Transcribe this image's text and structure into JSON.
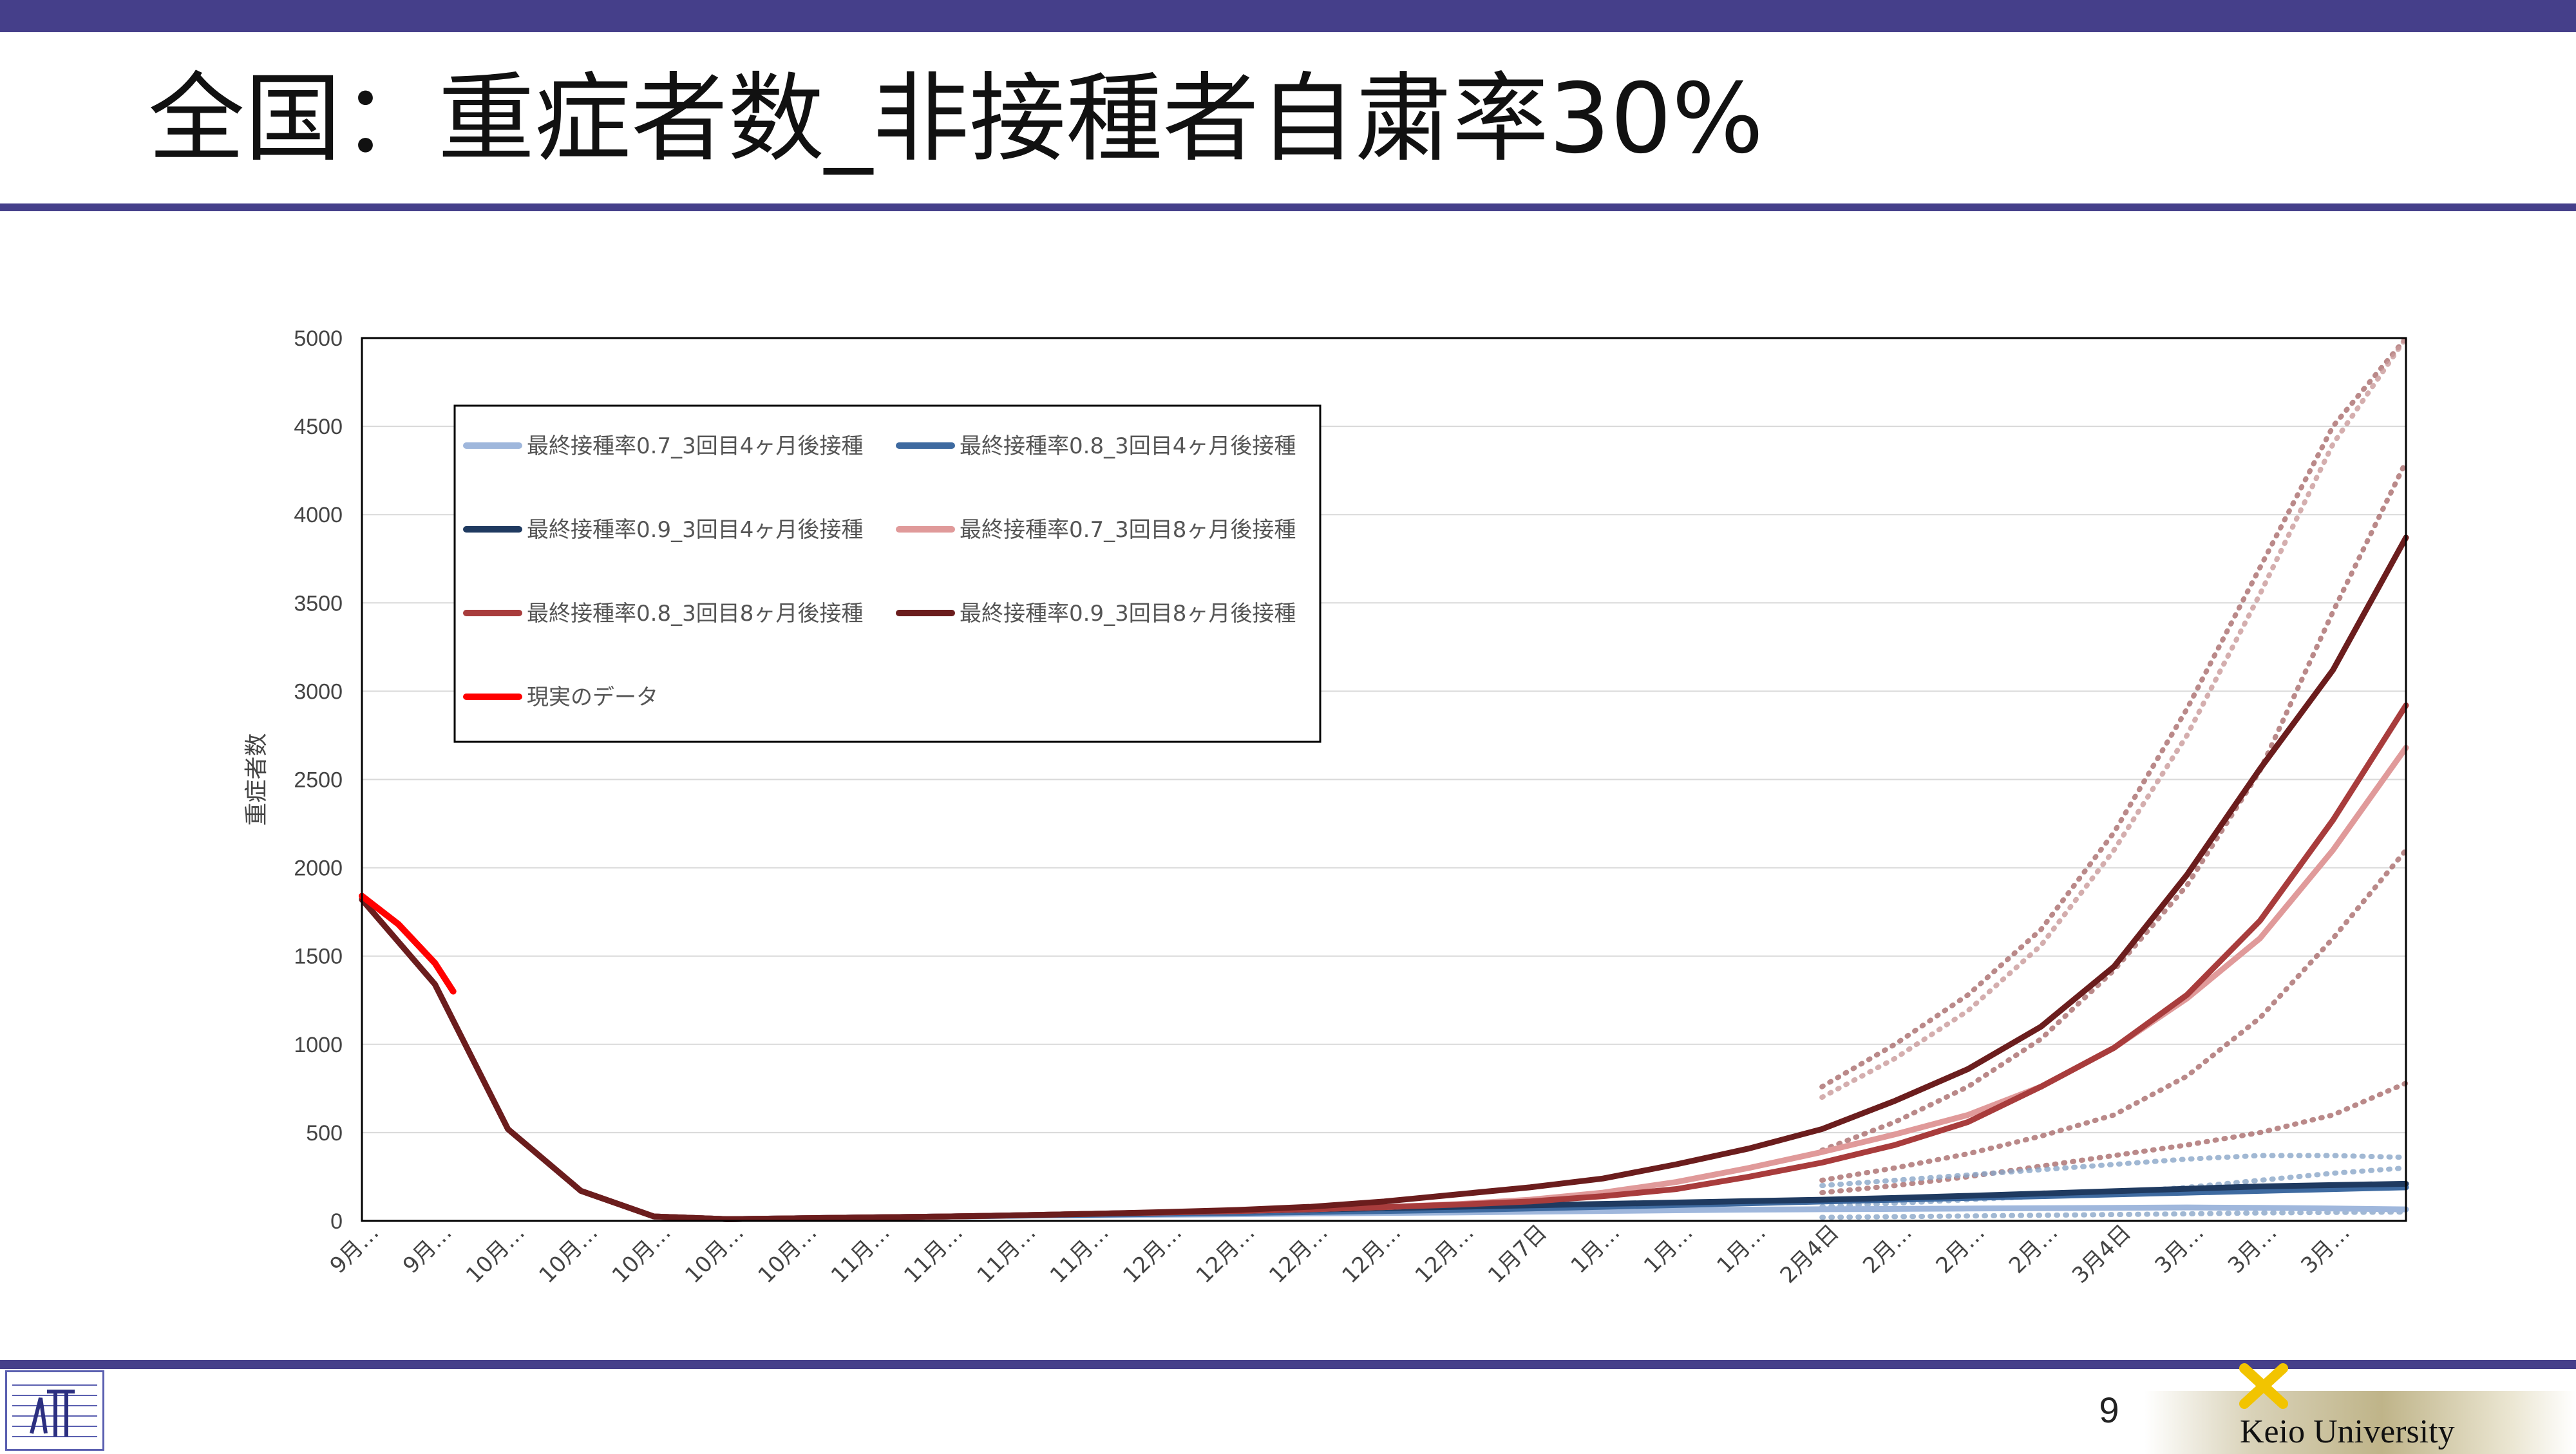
{
  "slide": {
    "title": "全国：重症者数_非接種者自粛率30%",
    "page_number": "9",
    "university_logo_text": "Keio University",
    "accent_color": "#453f8a"
  },
  "chart_data": {
    "type": "line",
    "title": "",
    "xlabel": "",
    "ylabel": "重症者数",
    "ylim": [
      0,
      5000
    ],
    "yticks": [
      0,
      500,
      1000,
      1500,
      2000,
      2500,
      3000,
      3500,
      4000,
      4500,
      5000
    ],
    "grid": true,
    "legend_position": "top-left inside",
    "x_tick_labels": [
      "9月…",
      "9月…",
      "10月…",
      "10月…",
      "10月…",
      "10月…",
      "10月…",
      "11月…",
      "11月…",
      "11月…",
      "11月…",
      "12月…",
      "12月…",
      "12月…",
      "12月…",
      "12月…",
      "1月7日",
      "1月…",
      "1月…",
      "1月…",
      "2月4日",
      "2月…",
      "2月…",
      "2月…",
      "3月4日",
      "3月…",
      "3月…",
      "3月…"
    ],
    "series": [
      {
        "name": "最終接種率0.7_3回目4ヶ月後接種",
        "color": "#9fb7dc",
        "style": "solid",
        "x": [
          0,
          1,
          2,
          3,
          4,
          5,
          6,
          7,
          8,
          9,
          10,
          11,
          12,
          13,
          14,
          15,
          16,
          17,
          18,
          19,
          20,
          21,
          22,
          23,
          24,
          25,
          26,
          27,
          28
        ],
        "values": [
          1820,
          1340,
          520,
          170,
          25,
          10,
          15,
          20,
          25,
          30,
          32,
          35,
          38,
          42,
          45,
          48,
          52,
          56,
          60,
          64,
          66,
          68,
          70,
          72,
          74,
          76,
          74,
          70,
          65
        ]
      },
      {
        "name": "最終接種率0.8_3回目4ヶ月後接種",
        "color": "#3e6aa0",
        "style": "solid",
        "x": [
          0,
          1,
          2,
          3,
          4,
          5,
          6,
          7,
          8,
          9,
          10,
          11,
          12,
          13,
          14,
          15,
          16,
          17,
          18,
          19,
          20,
          21,
          22,
          23,
          24,
          25,
          26,
          27,
          28
        ],
        "values": [
          1820,
          1340,
          520,
          170,
          25,
          10,
          15,
          20,
          25,
          30,
          35,
          40,
          45,
          50,
          56,
          62,
          70,
          80,
          90,
          100,
          110,
          120,
          130,
          140,
          150,
          160,
          170,
          180,
          190
        ]
      },
      {
        "name": "最終接種率0.9_3回目4ヶ月後接種",
        "color": "#1f3a60",
        "style": "solid",
        "x": [
          0,
          1,
          2,
          3,
          4,
          5,
          6,
          7,
          8,
          9,
          10,
          11,
          12,
          13,
          14,
          15,
          16,
          17,
          18,
          19,
          20,
          21,
          22,
          23,
          24,
          25,
          26,
          27,
          28
        ],
        "values": [
          1820,
          1340,
          520,
          170,
          25,
          10,
          15,
          20,
          25,
          32,
          40,
          48,
          56,
          64,
          72,
          80,
          88,
          96,
          104,
          112,
          120,
          130,
          142,
          155,
          168,
          182,
          195,
          203,
          210
        ]
      },
      {
        "name": "最終接種率0.7_3回目8ヶ月後接種",
        "color": "#e09a9a",
        "style": "solid",
        "x": [
          0,
          1,
          2,
          3,
          4,
          5,
          6,
          7,
          8,
          9,
          10,
          11,
          12,
          13,
          14,
          15,
          16,
          17,
          18,
          19,
          20,
          21,
          22,
          23,
          24,
          25,
          26,
          27,
          28
        ],
        "values": [
          1820,
          1340,
          520,
          170,
          25,
          10,
          15,
          20,
          25,
          32,
          40,
          48,
          56,
          66,
          78,
          95,
          120,
          160,
          220,
          300,
          390,
          490,
          600,
          760,
          980,
          1260,
          1600,
          2100,
          2680
        ]
      },
      {
        "name": "最終接種率0.8_3回目8ヶ月後接種",
        "color": "#a83c3c",
        "style": "solid",
        "x": [
          0,
          1,
          2,
          3,
          4,
          5,
          6,
          7,
          8,
          9,
          10,
          11,
          12,
          13,
          14,
          15,
          16,
          17,
          18,
          19,
          20,
          21,
          22,
          23,
          24,
          25,
          26,
          27,
          28
        ],
        "values": [
          1820,
          1340,
          520,
          170,
          25,
          10,
          15,
          20,
          25,
          32,
          40,
          48,
          56,
          66,
          78,
          92,
          110,
          140,
          180,
          250,
          330,
          430,
          560,
          760,
          980,
          1280,
          1700,
          2270,
          2920
        ]
      },
      {
        "name": "最終接種率0.9_3回目8ヶ月後接種",
        "color": "#6b1d1d",
        "style": "solid",
        "x": [
          0,
          1,
          2,
          3,
          4,
          5,
          6,
          7,
          8,
          9,
          10,
          11,
          12,
          13,
          14,
          15,
          16,
          17,
          18,
          19,
          20,
          21,
          22,
          23,
          24,
          25,
          26,
          27,
          28
        ],
        "values": [
          1820,
          1340,
          520,
          170,
          25,
          10,
          15,
          20,
          25,
          32,
          40,
          50,
          62,
          80,
          110,
          150,
          190,
          240,
          320,
          410,
          520,
          680,
          860,
          1100,
          1440,
          1960,
          2560,
          3120,
          3870
        ]
      },
      {
        "name": "現実のデータ",
        "color": "#ff0000",
        "style": "solid",
        "x": [
          0,
          0.5,
          1,
          1.25
        ],
        "values": [
          1840,
          1680,
          1460,
          1300
        ]
      }
    ],
    "bands": [
      {
        "color": "#a96c6c",
        "style": "dotted",
        "x": [
          20,
          21,
          22,
          23,
          24,
          25,
          26,
          27,
          28
        ],
        "values": [
          760,
          1000,
          1280,
          1650,
          2200,
          2900,
          3700,
          4500,
          5000
        ]
      },
      {
        "color": "#c99a9a",
        "style": "dotted",
        "x": [
          20,
          21,
          22,
          23,
          24,
          25,
          26,
          27,
          28
        ],
        "values": [
          700,
          920,
          1190,
          1560,
          2100,
          2750,
          3550,
          4400,
          5000
        ]
      },
      {
        "color": "#a96c6c",
        "style": "dotted",
        "x": [
          20,
          21,
          22,
          23,
          24,
          25,
          26,
          27,
          28
        ],
        "values": [
          400,
          560,
          760,
          1030,
          1420,
          1900,
          2550,
          3450,
          4300
        ]
      },
      {
        "color": "#a96c6c",
        "style": "dotted",
        "x": [
          20,
          21,
          22,
          23,
          24,
          25,
          26,
          27,
          28
        ],
        "values": [
          230,
          300,
          380,
          480,
          600,
          820,
          1150,
          1600,
          2100
        ]
      },
      {
        "color": "#a96c6c",
        "style": "dotted",
        "x": [
          20,
          21,
          22,
          23,
          24,
          25,
          26,
          27,
          28
        ],
        "values": [
          160,
          200,
          250,
          310,
          370,
          430,
          500,
          600,
          780
        ]
      },
      {
        "color": "#8aa6c8",
        "style": "dotted",
        "x": [
          20,
          21,
          22,
          23,
          24,
          25,
          26,
          27,
          28
        ],
        "values": [
          200,
          230,
          260,
          290,
          320,
          350,
          370,
          370,
          360
        ]
      },
      {
        "color": "#8aa6c8",
        "style": "dotted",
        "x": [
          20,
          21,
          22,
          23,
          24,
          25,
          26,
          27,
          28
        ],
        "values": [
          80,
          100,
          120,
          140,
          160,
          190,
          230,
          270,
          300
        ]
      },
      {
        "color": "#8aa6c8",
        "style": "dotted",
        "x": [
          20,
          21,
          22,
          23,
          24,
          25,
          26,
          27,
          28
        ],
        "values": [
          20,
          24,
          28,
          32,
          36,
          40,
          45,
          48,
          50
        ]
      }
    ]
  }
}
